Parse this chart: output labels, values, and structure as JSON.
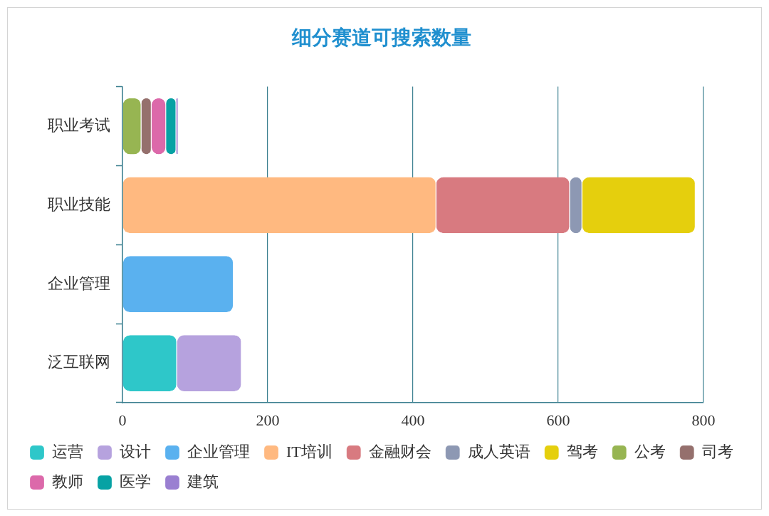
{
  "chart_data": {
    "type": "bar",
    "orientation": "horizontal",
    "stacked": true,
    "title": "细分赛道可搜索数量",
    "categories": [
      "职业考试",
      "职业技能",
      "企业管理",
      "泛互联网"
    ],
    "series": [
      {
        "name": "运营",
        "color": "#2ec7c9",
        "values": [
          null,
          null,
          null,
          75
        ]
      },
      {
        "name": "设计",
        "color": "#b6a2de",
        "values": [
          null,
          null,
          null,
          89
        ]
      },
      {
        "name": "企业管理",
        "color": "#5ab1ef",
        "values": [
          null,
          null,
          153,
          null
        ]
      },
      {
        "name": "IT培训",
        "color": "#ffb980",
        "values": [
          null,
          432,
          null,
          null
        ]
      },
      {
        "name": "金融财会",
        "color": "#d87a80",
        "values": [
          null,
          184,
          null,
          null
        ]
      },
      {
        "name": "成人英语",
        "color": "#8d98b3",
        "values": [
          null,
          17,
          null,
          null
        ]
      },
      {
        "name": "驾考",
        "color": "#e5cf0d",
        "values": [
          null,
          156,
          null,
          null
        ]
      },
      {
        "name": "公考",
        "color": "#97b552",
        "values": [
          26,
          null,
          null,
          null
        ]
      },
      {
        "name": "司考",
        "color": "#95706d",
        "values": [
          14,
          null,
          null,
          null
        ]
      },
      {
        "name": "教师",
        "color": "#dc69aa",
        "values": [
          20,
          null,
          null,
          null
        ]
      },
      {
        "name": "医学",
        "color": "#07a2a4",
        "values": [
          14,
          null,
          null,
          null
        ]
      },
      {
        "name": "建筑",
        "color": "#9a7fd1",
        "values": [
          3,
          null,
          null,
          null
        ]
      }
    ],
    "xlim": [
      0,
      800
    ],
    "xticks": [
      0,
      200,
      400,
      600,
      800
    ],
    "grid": "x",
    "legend": "bottom"
  }
}
